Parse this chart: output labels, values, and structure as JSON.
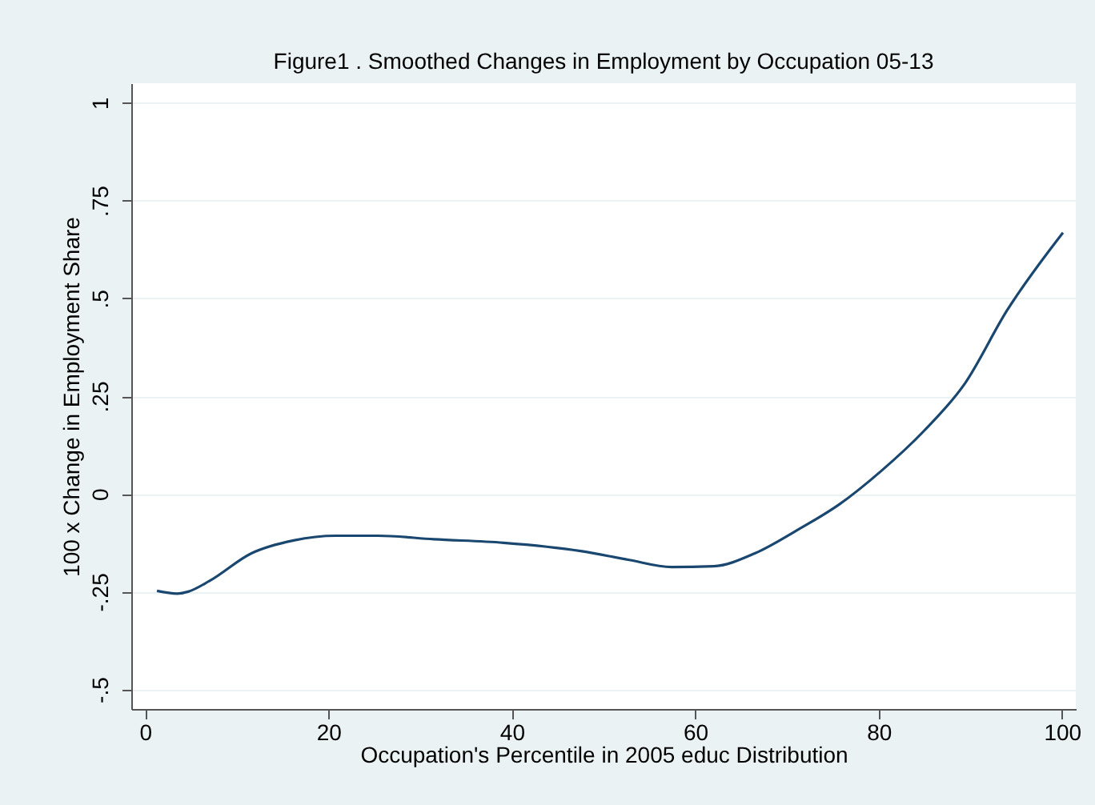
{
  "chart_data": {
    "type": "line",
    "title": "Figure1 . Smoothed Changes in Employment by Occupation 05-13",
    "xlabel": "Occupation's Percentile in 2005 educ Distribution",
    "ylabel": "100 x Change in Employment Share",
    "x": [
      1.3,
      3.5,
      4.7,
      7.0,
      11.6,
      16.2,
      20.8,
      25.4,
      31.5,
      39.1,
      47.5,
      52.8,
      57.4,
      62.0,
      66.5,
      71.1,
      75.7,
      80.3,
      84.9,
      89.4,
      94.0,
      100.1
    ],
    "series": [
      {
        "color": "#1a476f",
        "values": [
          -0.248,
          -0.255,
          -0.25,
          -0.223,
          -0.152,
          -0.119,
          -0.107,
          -0.107,
          -0.116,
          -0.125,
          -0.146,
          -0.169,
          -0.187,
          -0.185,
          -0.152,
          -0.093,
          -0.027,
          0.059,
          0.16,
          0.282,
          0.469,
          0.668
        ]
      }
    ],
    "xlim": [
      -1.5,
      101.5
    ],
    "xticks": [
      0,
      20,
      40,
      60,
      80,
      100
    ],
    "ylim": [
      -0.55,
      1.05
    ],
    "yticks": [
      {
        "value": -0.5,
        "label": "-.5"
      },
      {
        "value": -0.25,
        "label": "-.25"
      },
      {
        "value": 0,
        "label": "0"
      },
      {
        "value": 0.25,
        "label": ".25"
      },
      {
        "value": 0.5,
        "label": ".5"
      },
      {
        "value": 0.75,
        "label": ".75"
      },
      {
        "value": 1,
        "label": "1"
      }
    ],
    "grid": "y",
    "marker": "none",
    "line_style": "solid"
  }
}
